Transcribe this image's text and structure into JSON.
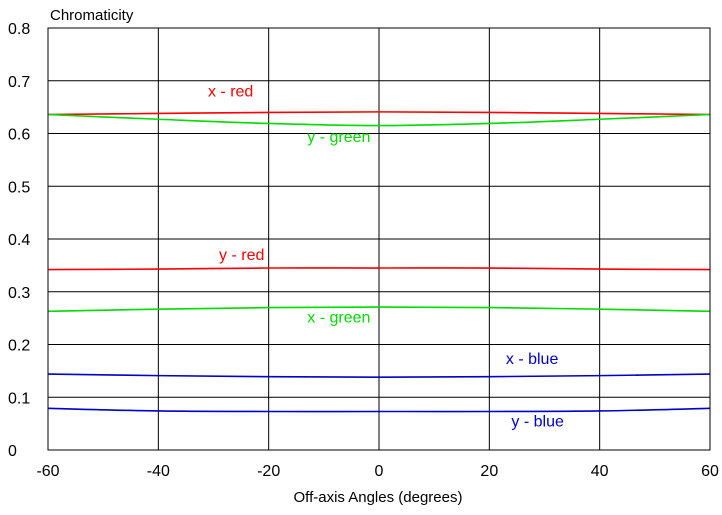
{
  "chart_data": {
    "type": "line",
    "title": "",
    "ylabel": "Chromaticity",
    "xlabel": "Off-axis Angles (degrees)",
    "xlim": [
      -60,
      60
    ],
    "ylim": [
      0,
      0.8
    ],
    "xticks": [
      -60,
      -40,
      -20,
      0,
      20,
      40,
      60
    ],
    "yticks": [
      0,
      0.1,
      0.2,
      0.3,
      0.4,
      0.5,
      0.6,
      0.7,
      0.8
    ],
    "xtick_labels": [
      "-60",
      "-40",
      "-20",
      "0",
      "20",
      "40",
      "60"
    ],
    "ytick_labels": [
      "0",
      "0.1",
      "0.2",
      "0.3",
      "0.4",
      "0.5",
      "0.6",
      "0.7",
      "0.8"
    ],
    "grid": true,
    "legend": "none",
    "x": [
      -60,
      -40,
      -20,
      0,
      20,
      40,
      60
    ],
    "series": [
      {
        "name": "x - red",
        "color": "#ff0000",
        "values": [
          0.636,
          0.638,
          0.64,
          0.641,
          0.64,
          0.638,
          0.636
        ],
        "label_at": [
          -31,
          0.67
        ]
      },
      {
        "name": "y - green",
        "color": "#00dd00",
        "values": [
          0.636,
          0.627,
          0.619,
          0.615,
          0.619,
          0.627,
          0.636
        ],
        "label_at": [
          -13,
          0.584
        ]
      },
      {
        "name": "y - red",
        "color": "#ff0000",
        "values": [
          0.342,
          0.343,
          0.345,
          0.345,
          0.345,
          0.343,
          0.342
        ],
        "label_at": [
          -29,
          0.36
        ]
      },
      {
        "name": "x - green",
        "color": "#00dd00",
        "values": [
          0.263,
          0.267,
          0.27,
          0.271,
          0.27,
          0.267,
          0.263
        ],
        "label_at": [
          -13,
          0.242
        ]
      },
      {
        "name": "x - blue",
        "color": "#0000cc",
        "values": [
          0.144,
          0.141,
          0.139,
          0.138,
          0.139,
          0.141,
          0.144
        ],
        "label_at": [
          23,
          0.163
        ]
      },
      {
        "name": "y - blue",
        "color": "#0000cc",
        "values": [
          0.079,
          0.074,
          0.073,
          0.073,
          0.073,
          0.074,
          0.079
        ],
        "label_at": [
          24,
          0.045
        ]
      }
    ]
  }
}
